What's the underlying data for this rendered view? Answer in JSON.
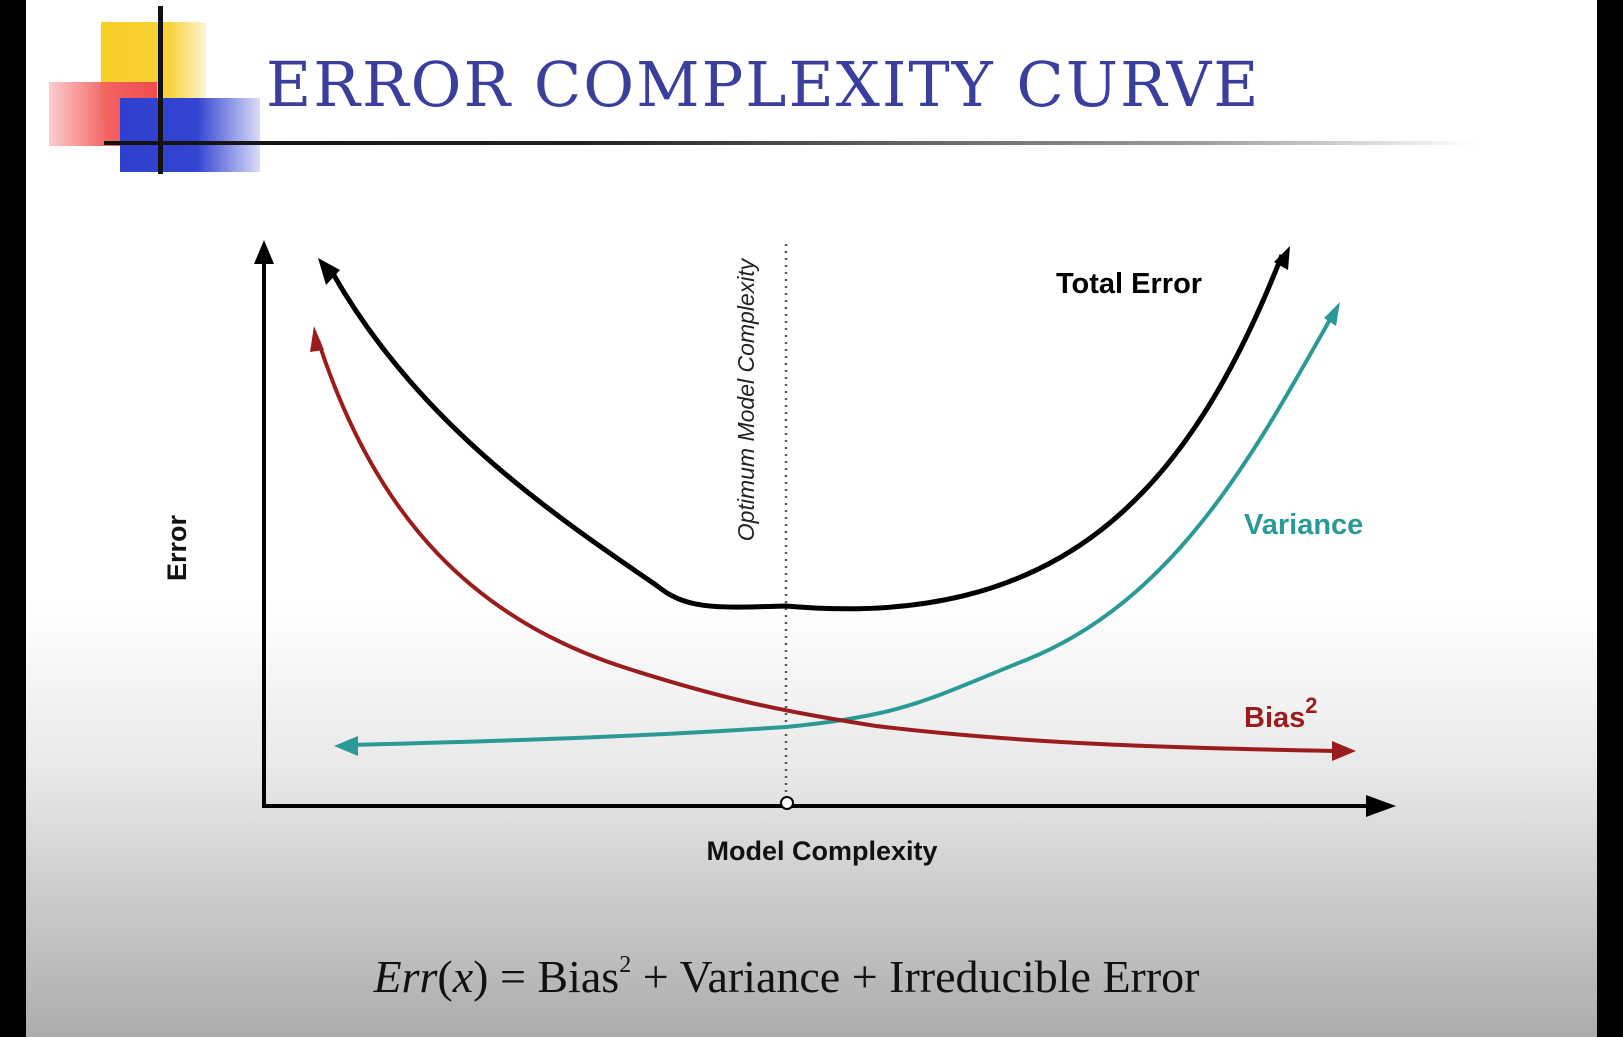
{
  "slide": {
    "title": "ERROR COMPLEXITY CURVE"
  },
  "diagram": {
    "x_axis_label": "Model Complexity",
    "y_axis_label": "Error",
    "optimum_label": "Optimum Model Complexity",
    "curves": {
      "total_error": {
        "label": "Total Error",
        "color": "#000000"
      },
      "variance": {
        "label": "Variance",
        "color": "#2b9a96"
      },
      "bias": {
        "label": "Bias",
        "superscript": "2",
        "color": "#9b1c1c"
      }
    }
  },
  "formula": {
    "lhs_func": "Err",
    "lhs_paren_open": "(",
    "lhs_var": "x",
    "lhs_paren_close": ")",
    "equals": " = ",
    "term1": "Bias",
    "term1_exp": "2",
    "plus1": " + ",
    "term2": "Variance",
    "plus2": " + ",
    "term3": "Irreducible Error"
  }
}
